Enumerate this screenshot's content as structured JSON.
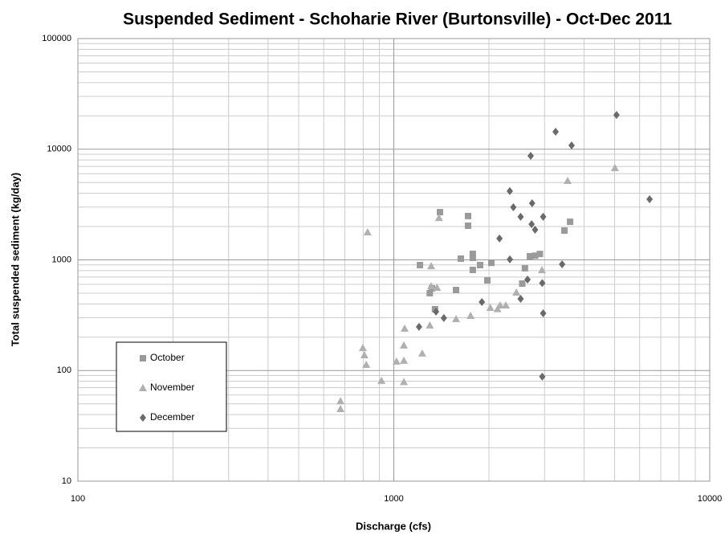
{
  "chart_data": {
    "type": "scatter",
    "title": "Suspended Sediment - Schoharie River (Burtonsville) - Oct-Dec 2011",
    "x_label": "Discharge (cfs)",
    "y_label": "Total suspended sediment (kg/day)",
    "log_x": true,
    "log_y": true,
    "grid": true,
    "legend": "lower left",
    "xlim": [
      100,
      10000
    ],
    "xticks": [
      100,
      1000,
      10000
    ],
    "ylim": [
      10,
      100000
    ],
    "yticks": [
      10,
      100,
      1000,
      10000,
      100000
    ],
    "series": [
      {
        "name": "October",
        "color": "#9a9a9a",
        "marker": "square",
        "x": [
          1400,
          1718,
          1718,
          3614,
          3467,
          1210,
          1630,
          1778,
          1778,
          1778,
          1876,
          2036,
          1977,
          2697,
          2800,
          2900,
          2600,
          2550,
          1320,
          1300,
          1574,
          1350
        ],
        "values": [
          2700,
          2490,
          2035,
          2210,
          1840,
          897,
          1026,
          1133,
          1043,
          811,
          897,
          940,
          653,
          1078,
          1090,
          1130,
          840,
          610,
          552,
          500,
          534,
          358
        ]
      },
      {
        "name": "November",
        "color": "#b0b0b0",
        "marker": "triangle",
        "x": [
          826,
          1390,
          3550,
          5010,
          1313,
          1313,
          1370,
          2020,
          2944,
          2443,
          2262,
          2170,
          2130,
          1750,
          1574,
          1300,
          1082,
          1076,
          1230,
          798,
          807,
          818,
          914,
          1020,
          1076,
          1076,
          678,
          678
        ],
        "values": [
          1780,
          2400,
          5190,
          6780,
          880,
          580,
          560,
          370,
          810,
          508,
          389,
          389,
          360,
          313,
          293,
          256,
          240,
          169,
          143,
          160,
          138,
          113,
          81,
          121,
          123,
          79,
          53,
          45
        ]
      },
      {
        "name": "December",
        "color": "#6a6a6a",
        "marker": "diamond",
        "x": [
          5070,
          3252,
          3654,
          2712,
          6450,
          2329,
          2740,
          2390,
          2970,
          2520,
          2730,
          2800,
          2160,
          2330,
          3410,
          2650,
          2950,
          2520,
          1900,
          1440,
          1360,
          1202,
          2970,
          2950
        ],
        "values": [
          20400,
          14380,
          10820,
          8710,
          3530,
          4180,
          3250,
          2990,
          2450,
          2450,
          2100,
          1870,
          1560,
          1010,
          912,
          664,
          617,
          445,
          416,
          298,
          340,
          248,
          329,
          88
        ]
      }
    ]
  }
}
